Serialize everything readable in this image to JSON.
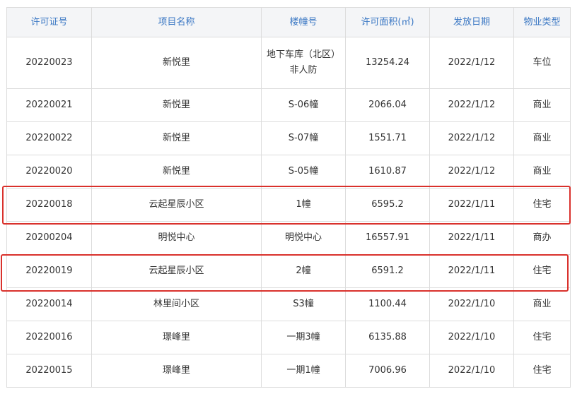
{
  "columns": [
    "许可证号",
    "项目名称",
    "楼幢号",
    "许可面积(㎡)",
    "发放日期",
    "物业类型"
  ],
  "rows": [
    [
      "20220023",
      "新悦里",
      "地下车库（北区）非人防",
      "13254.24",
      "2022/1/12",
      "车位"
    ],
    [
      "20220021",
      "新悦里",
      "S-06幢",
      "2066.04",
      "2022/1/12",
      "商业"
    ],
    [
      "20220022",
      "新悦里",
      "S-07幢",
      "1551.71",
      "2022/1/12",
      "商业"
    ],
    [
      "20220020",
      "新悦里",
      "S-05幢",
      "1610.87",
      "2022/1/12",
      "商业"
    ],
    [
      "20220018",
      "云起星辰小区",
      "1幢",
      "6595.2",
      "2022/1/11",
      "住宅"
    ],
    [
      "20200204",
      "明悦中心",
      "明悦中心",
      "16557.91",
      "2022/1/11",
      "商办"
    ],
    [
      "20220019",
      "云起星辰小区",
      "2幢",
      "6591.2",
      "2022/1/11",
      "住宅"
    ],
    [
      "20220014",
      "林里间小区",
      "S3幢",
      "1100.44",
      "2022/1/10",
      "商业"
    ],
    [
      "20220016",
      "璟峰里",
      "一期3幢",
      "6135.88",
      "2022/1/10",
      "住宅"
    ],
    [
      "20220015",
      "璟峰里",
      "一期1幢",
      "7006.96",
      "2022/1/10",
      "住宅"
    ]
  ],
  "highlighted_rows": [
    4,
    6
  ],
  "colors": {
    "header_text": "#3b78c4",
    "highlight": "#d9312c"
  }
}
